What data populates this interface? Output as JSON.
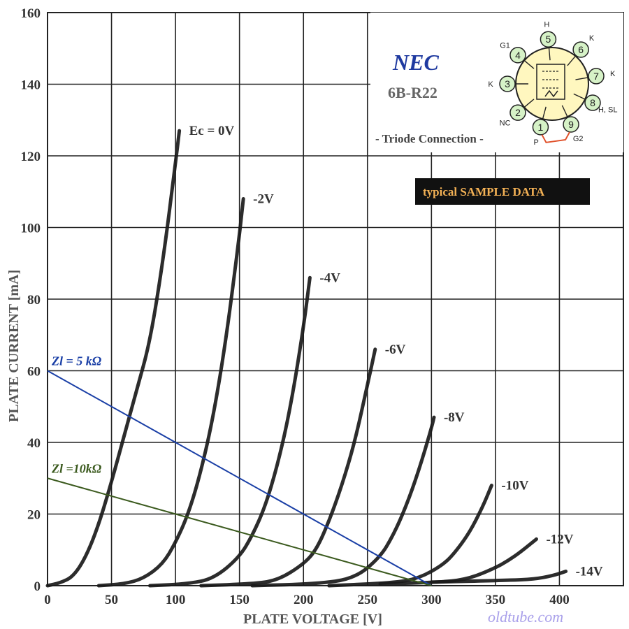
{
  "chart_data": {
    "type": "line",
    "xlabel": "PLATE VOLTAGE [V]",
    "ylabel": "PLATE CURRENT  [mA]",
    "xlim": [
      0,
      450
    ],
    "ylim": [
      0,
      160
    ],
    "x_ticks": [
      "0",
      "50",
      "100",
      "150",
      "200",
      "250",
      "300",
      "350",
      "400"
    ],
    "y_ticks": [
      "0",
      "20",
      "40",
      "60",
      "80",
      "100",
      "120",
      "140",
      "160"
    ],
    "grid": true,
    "series": [
      {
        "name": "Ec = 0V",
        "points": [
          [
            0,
            0
          ],
          [
            10,
            0.8
          ],
          [
            20,
            2.5
          ],
          [
            30,
            8
          ],
          [
            40,
            17
          ],
          [
            50,
            29
          ],
          [
            60,
            42
          ],
          [
            70,
            55
          ],
          [
            80,
            68
          ],
          [
            90,
            90
          ],
          [
            100,
            118
          ],
          [
            103,
            127
          ]
        ]
      },
      {
        "name": "-2V",
        "points": [
          [
            40,
            0
          ],
          [
            60,
            0.5
          ],
          [
            75,
            2
          ],
          [
            90,
            6
          ],
          [
            100,
            12
          ],
          [
            110,
            20
          ],
          [
            120,
            32
          ],
          [
            130,
            48
          ],
          [
            140,
            70
          ],
          [
            150,
            98
          ],
          [
            153,
            108
          ]
        ]
      },
      {
        "name": "-4V",
        "points": [
          [
            80,
            0
          ],
          [
            110,
            0.5
          ],
          [
            130,
            2
          ],
          [
            150,
            8
          ],
          [
            160,
            14
          ],
          [
            170,
            22
          ],
          [
            180,
            34
          ],
          [
            190,
            50
          ],
          [
            200,
            72
          ],
          [
            205,
            86
          ]
        ]
      },
      {
        "name": "-6V",
        "points": [
          [
            120,
            0
          ],
          [
            160,
            0.5
          ],
          [
            180,
            1.5
          ],
          [
            200,
            6
          ],
          [
            210,
            10
          ],
          [
            220,
            18
          ],
          [
            230,
            28
          ],
          [
            240,
            40
          ],
          [
            250,
            56
          ],
          [
            256,
            66
          ]
        ]
      },
      {
        "name": "-8V",
        "points": [
          [
            160,
            0
          ],
          [
            210,
            0.5
          ],
          [
            240,
            2
          ],
          [
            260,
            8
          ],
          [
            270,
            14
          ],
          [
            280,
            22
          ],
          [
            290,
            32
          ],
          [
            300,
            44
          ],
          [
            302,
            47
          ]
        ]
      },
      {
        "name": "-10V",
        "points": [
          [
            220,
            0
          ],
          [
            270,
            0.8
          ],
          [
            290,
            2
          ],
          [
            310,
            6
          ],
          [
            320,
            10
          ],
          [
            330,
            15
          ],
          [
            340,
            22
          ],
          [
            347,
            28
          ]
        ]
      },
      {
        "name": "-12V",
        "points": [
          [
            260,
            0.5
          ],
          [
            310,
            1
          ],
          [
            330,
            2
          ],
          [
            350,
            5
          ],
          [
            360,
            7
          ],
          [
            370,
            9.5
          ],
          [
            382,
            13
          ]
        ]
      },
      {
        "name": "-14V",
        "points": [
          [
            300,
            1
          ],
          [
            360,
            1.5
          ],
          [
            380,
            1.8
          ],
          [
            395,
            2.8
          ],
          [
            405,
            4
          ]
        ]
      }
    ],
    "load_lines": [
      {
        "name": "Zl = 5 kΩ",
        "color": "#1a3fa6",
        "from": [
          0,
          60
        ],
        "to": [
          300,
          0
        ]
      },
      {
        "name": "Zl =10kΩ",
        "color": "#3b5a1e",
        "from": [
          0,
          30
        ],
        "to": [
          300,
          0
        ]
      }
    ]
  },
  "header": {
    "brand": "NEC",
    "model": "6B-R22",
    "connection": "- Triode Connection -",
    "sample_badge": "typical  SAMPLE  DATA"
  },
  "pinout": {
    "pins": [
      {
        "num": "1",
        "label": "P"
      },
      {
        "num": "2",
        "label": "NC"
      },
      {
        "num": "3",
        "label": "K"
      },
      {
        "num": "4",
        "label": "G1"
      },
      {
        "num": "5",
        "label": "H"
      },
      {
        "num": "6",
        "label": "K"
      },
      {
        "num": "7",
        "label": "K"
      },
      {
        "num": "8",
        "label": "H, SL"
      },
      {
        "num": "9",
        "label": "G2"
      }
    ]
  },
  "watermark": "oldtube.com",
  "colors": {
    "curve": "#1a1a1a",
    "grid": "#222222",
    "load_5k": "#1a3fa6",
    "load_10k": "#3b5a1e",
    "badge_bg": "#111111",
    "socket_fill": "#fff7bf",
    "pin_fill": "#d6f2c7",
    "strap": "#e0512b"
  }
}
